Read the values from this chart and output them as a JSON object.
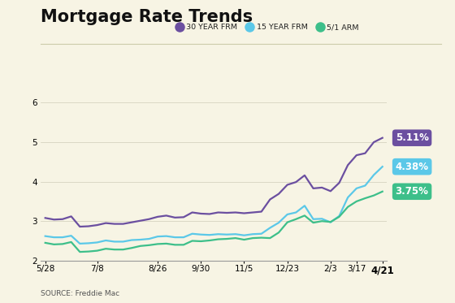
{
  "title": "Mortgage Rate Trends",
  "source": "SOURCE: Freddie Mac",
  "background_color": "#f7f4e4",
  "plot_bg_color": "#f7f4e4",
  "ylim": [
    2.0,
    6.3
  ],
  "yticks": [
    2,
    3,
    4,
    5,
    6
  ],
  "xlabel_ticks": [
    "5/28",
    "7/8",
    "8/26",
    "9/30",
    "11/5",
    "12/23",
    "2/3",
    "3/17",
    "4/21"
  ],
  "xtick_positions": [
    0,
    6,
    13,
    18,
    23,
    28,
    33,
    36,
    39
  ],
  "legend": [
    "30 YEAR FRM",
    "15 YEAR FRM",
    "5/1 ARM"
  ],
  "legend_colors": [
    "#6b4fa0",
    "#5bc8e8",
    "#3dbf8a"
  ],
  "line_colors": [
    "#6b4fa0",
    "#5bc8e8",
    "#3dbf8a"
  ],
  "annotation_colors": [
    "#6b4fa0",
    "#5bc8e8",
    "#3dbf8a"
  ],
  "annotations": [
    "5.11%",
    "4.38%",
    "3.75%"
  ],
  "series_30yr": [
    3.08,
    3.04,
    3.05,
    3.12,
    2.86,
    2.87,
    2.9,
    2.95,
    2.93,
    2.93,
    2.97,
    3.01,
    3.05,
    3.11,
    3.14,
    3.09,
    3.1,
    3.22,
    3.19,
    3.18,
    3.22,
    3.21,
    3.22,
    3.2,
    3.22,
    3.24,
    3.55,
    3.69,
    3.92,
    3.99,
    4.16,
    3.83,
    3.85,
    3.76,
    3.97,
    4.42,
    4.67,
    4.72,
    5.0,
    5.11
  ],
  "series_15yr": [
    2.62,
    2.59,
    2.59,
    2.63,
    2.43,
    2.44,
    2.46,
    2.51,
    2.48,
    2.48,
    2.52,
    2.53,
    2.55,
    2.61,
    2.62,
    2.59,
    2.59,
    2.68,
    2.66,
    2.65,
    2.67,
    2.66,
    2.67,
    2.64,
    2.67,
    2.68,
    2.83,
    2.96,
    3.17,
    3.22,
    3.39,
    3.05,
    3.06,
    2.97,
    3.13,
    3.6,
    3.83,
    3.9,
    4.17,
    4.38
  ],
  "series_arm": [
    2.45,
    2.41,
    2.42,
    2.47,
    2.22,
    2.23,
    2.25,
    2.3,
    2.28,
    2.28,
    2.32,
    2.37,
    2.39,
    2.42,
    2.43,
    2.4,
    2.4,
    2.5,
    2.49,
    2.51,
    2.54,
    2.55,
    2.57,
    2.53,
    2.57,
    2.58,
    2.57,
    2.71,
    2.97,
    3.05,
    3.14,
    2.96,
    3.0,
    2.98,
    3.11,
    3.36,
    3.5,
    3.58,
    3.65,
    3.75
  ],
  "title_fontsize": 15,
  "tick_fontsize": 7.5,
  "legend_fontsize": 6.8,
  "annotation_fontsize": 8.5
}
